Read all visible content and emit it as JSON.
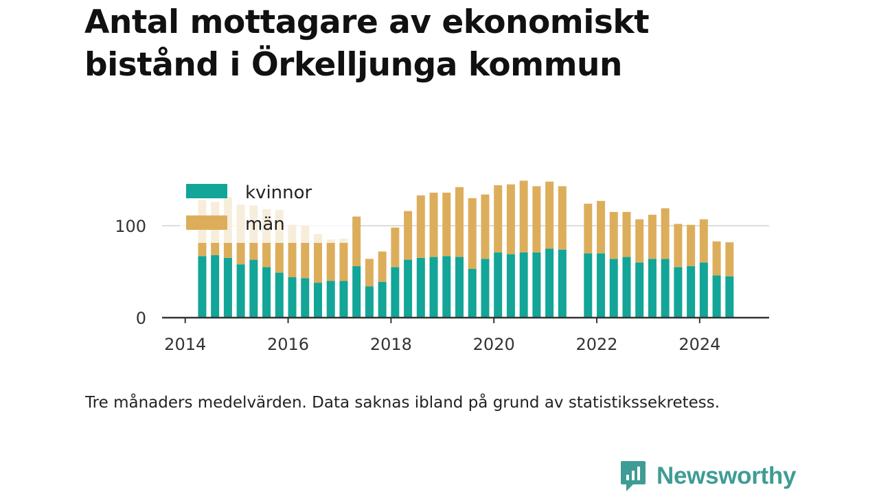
{
  "title_lines": [
    "Antal mottagare av ekonomiskt",
    "bistånd i Örkelljunga kommun"
  ],
  "note": "Tre månaders medelvärden. Data saknas ibland på grund av statistikssekretess.",
  "brand": {
    "name": "Newsworthy",
    "icon": "newsworthy-logo-icon",
    "color": "#3f9c94"
  },
  "colors": {
    "kvinnor": "#12a598",
    "man": "#dcae5c",
    "grid": "#dddddd",
    "axis": "#333333"
  },
  "chart_data": {
    "type": "bar",
    "stacked": true,
    "x_axis": {
      "range": [
        2013.55,
        2025.35
      ],
      "ticks": [
        2014,
        2016,
        2018,
        2020,
        2022,
        2024
      ],
      "tick_labels": [
        "2014",
        "2016",
        "2018",
        "2020",
        "2022",
        "2024"
      ]
    },
    "y_axis": {
      "range": [
        0,
        150
      ],
      "ticks": [
        0,
        100
      ],
      "tick_labels": [
        "0",
        "100"
      ]
    },
    "grid": "y",
    "legend": {
      "position": "top-left",
      "entries": [
        "kvinnor",
        "män"
      ]
    },
    "x": [
      2014.33,
      2014.58,
      2014.83,
      2015.08,
      2015.33,
      2015.58,
      2015.83,
      2016.08,
      2016.33,
      2016.58,
      2016.83,
      2017.08,
      2017.33,
      2017.58,
      2017.83,
      2018.08,
      2018.33,
      2018.58,
      2018.83,
      2019.08,
      2019.33,
      2019.58,
      2019.83,
      2020.08,
      2020.33,
      2020.58,
      2020.83,
      2021.08,
      2021.33,
      2021.83,
      2022.08,
      2022.33,
      2022.58,
      2022.83,
      2023.08,
      2023.33,
      2023.58,
      2023.83,
      2024.08,
      2024.33,
      2024.58
    ],
    "series": [
      {
        "name": "kvinnor",
        "values": [
          67,
          68,
          65,
          58,
          63,
          55,
          49,
          44,
          43,
          38,
          40,
          40,
          56,
          34,
          39,
          55,
          63,
          65,
          66,
          67,
          66,
          53,
          64,
          71,
          69,
          71,
          71,
          75,
          74,
          70,
          70,
          64,
          66,
          60,
          64,
          64,
          55,
          56,
          60,
          46,
          45
        ]
      },
      {
        "name": "män",
        "values": [
          61,
          58,
          66,
          65,
          59,
          63,
          68,
          57,
          57,
          53,
          45,
          46,
          54,
          30,
          33,
          43,
          53,
          68,
          70,
          69,
          76,
          77,
          70,
          73,
          76,
          78,
          72,
          73,
          69,
          54,
          57,
          51,
          49,
          47,
          48,
          55,
          47,
          45,
          47,
          37,
          37
        ]
      }
    ]
  }
}
